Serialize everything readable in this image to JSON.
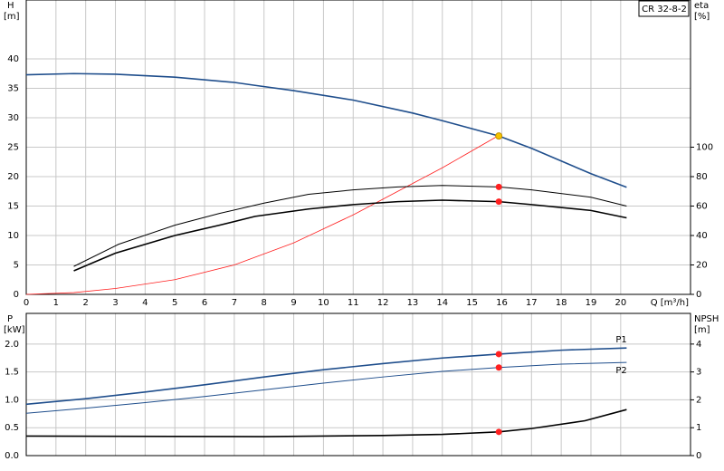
{
  "chart_data": [
    {
      "type": "line",
      "title": "CR 32-8-2",
      "ylabel": "H",
      "yunit": "[m]",
      "y2label": "eta",
      "y2unit": "[%]",
      "xlabel": "Q [m³/h]",
      "xlim": [
        0,
        22.35
      ],
      "xticks": [
        0,
        1,
        2,
        3,
        4,
        5,
        6,
        7,
        8,
        9,
        10,
        11,
        12,
        13,
        14,
        15,
        16,
        17,
        18,
        19,
        20
      ],
      "ylim": [
        0,
        50
      ],
      "yticks": [
        0,
        5,
        10,
        15,
        20,
        25,
        30,
        35,
        40
      ],
      "y2lim": [
        0,
        200
      ],
      "y2ticks": [
        0,
        20,
        40,
        60,
        80,
        100
      ],
      "grid": true,
      "series": [
        {
          "color": "#1f4e8c",
          "width": 1.6,
          "x": [
            0,
            1.6,
            3,
            5,
            7,
            7.7,
            9,
            11,
            13,
            14,
            15.9,
            17,
            19,
            20.2
          ],
          "values": [
            37.3,
            37.5,
            37.4,
            36.9,
            36,
            35.5,
            34.6,
            33,
            30.8,
            29.5,
            26.9,
            24.8,
            20.5,
            18.2
          ]
        },
        {
          "color": "#ff2020",
          "width": 0.8,
          "axis": "y2",
          "x": [
            0,
            1.6,
            3,
            5,
            7,
            9,
            11,
            12.5,
            14,
            15.9
          ],
          "values": [
            0,
            1.2,
            4,
            10,
            20,
            35,
            54,
            70,
            86,
            108
          ]
        },
        {
          "color": "#000000",
          "width": 1,
          "axis": "y2",
          "x": [
            1.6,
            3.1,
            5,
            6.5,
            8,
            9.5,
            11,
            12.5,
            14,
            15.9,
            17,
            19,
            20.2
          ],
          "values": [
            19,
            34,
            47,
            55,
            62,
            68,
            71,
            73,
            74,
            73,
            71,
            66,
            60
          ]
        },
        {
          "color": "#000000",
          "width": 1.6,
          "axis": "y2",
          "x": [
            1.6,
            3,
            5,
            6.5,
            7.7,
            9.5,
            11,
            12.5,
            14,
            15.9,
            17,
            19,
            20.2
          ],
          "values": [
            16,
            28,
            40,
            47,
            53,
            58,
            61,
            63,
            64,
            63,
            61,
            57,
            52
          ]
        }
      ],
      "markers": [
        {
          "x": 15.9,
          "y": 26.9,
          "color": "#f5c400"
        },
        {
          "x": 15.9,
          "y": 73,
          "axis": "y2",
          "color": "#ff2020"
        },
        {
          "x": 15.9,
          "y": 63,
          "axis": "y2",
          "color": "#ff2020"
        }
      ]
    },
    {
      "type": "line",
      "ylabel": "P",
      "yunit": "[kW]",
      "y2label": "NPSH",
      "y2unit": "[m]",
      "xlim": [
        0,
        22.35
      ],
      "xticks": [
        0,
        1,
        2,
        3,
        4,
        5,
        6,
        7,
        8,
        9,
        10,
        11,
        12,
        13,
        14,
        15,
        16,
        17,
        18,
        19,
        20
      ],
      "ylim": [
        0,
        2.55
      ],
      "yticks": [
        {
          "value": 0,
          "label": "0.0"
        },
        0.5,
        {
          "value": 1,
          "label": "1.0"
        },
        1.5,
        {
          "value": 2,
          "label": "2.0"
        }
      ],
      "y2lim": [
        0,
        5.1
      ],
      "y2ticks": [
        0,
        1,
        2,
        3,
        4
      ],
      "grid": true,
      "series": [
        {
          "name": "P1",
          "color": "#1f4e8c",
          "width": 1.6,
          "x": [
            0,
            2,
            4,
            6,
            8,
            10,
            12,
            14,
            15.9,
            18,
            20.2
          ],
          "values": [
            0.92,
            1.02,
            1.14,
            1.27,
            1.41,
            1.54,
            1.65,
            1.75,
            1.82,
            1.89,
            1.93
          ]
        },
        {
          "name": "P2",
          "color": "#1f4e8c",
          "width": 1,
          "x": [
            0,
            2,
            4,
            6,
            8,
            10,
            12,
            14,
            15.9,
            18,
            20.2
          ],
          "values": [
            0.76,
            0.85,
            0.95,
            1.06,
            1.18,
            1.3,
            1.41,
            1.51,
            1.58,
            1.64,
            1.67
          ]
        },
        {
          "color": "#000000",
          "width": 1.6,
          "axis": "y2",
          "x": [
            0,
            8,
            12,
            14,
            15.9,
            17,
            18.8,
            20.2
          ],
          "values": [
            0.7,
            0.68,
            0.72,
            0.76,
            0.85,
            0.97,
            1.25,
            1.65
          ]
        }
      ],
      "markers": [
        {
          "x": 15.9,
          "y": 1.82,
          "color": "#ff2020"
        },
        {
          "x": 15.9,
          "y": 1.58,
          "color": "#ff2020"
        },
        {
          "x": 15.9,
          "y": 0.85,
          "axis": "y2",
          "color": "#ff2020"
        }
      ]
    }
  ]
}
